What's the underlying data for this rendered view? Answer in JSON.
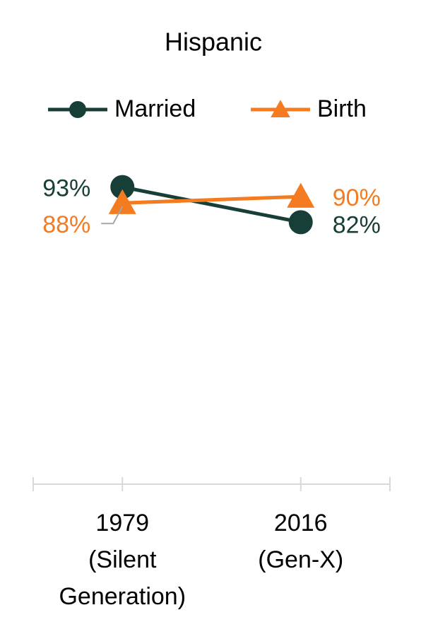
{
  "chart_data": {
    "type": "line",
    "title": "Hispanic",
    "categories": [
      "1979\n(Silent\nGeneration)",
      "2016\n(Gen-X)"
    ],
    "series": [
      {
        "name": "Married",
        "color": "#173f38",
        "marker": "circle",
        "values": [
          93,
          82
        ],
        "value_labels": [
          "93%",
          "82%"
        ]
      },
      {
        "name": "Birth",
        "color": "#f47b20",
        "marker": "triangle",
        "values": [
          88,
          90
        ],
        "value_labels": [
          "88%",
          "90%"
        ]
      }
    ],
    "ylim": [
      0,
      100
    ],
    "legend": "top"
  }
}
